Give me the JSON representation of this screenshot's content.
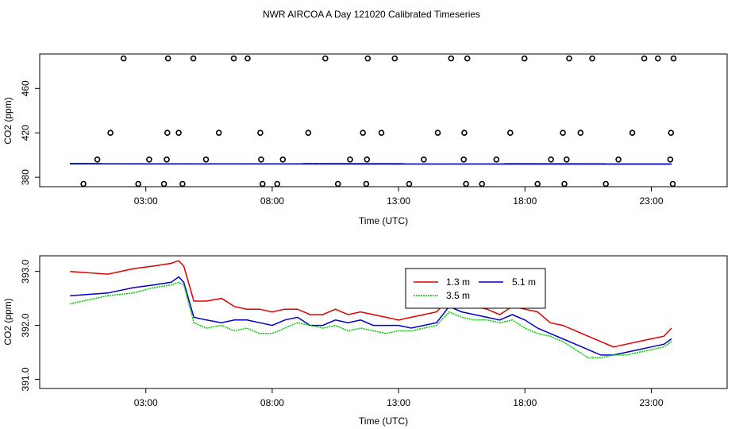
{
  "colors": {
    "red": "#e00000",
    "green": "#00cc00",
    "blue": "#0000cc",
    "axis": "#000000"
  },
  "chart_data": [
    {
      "type": "scatter",
      "title": "NWR AIRCOA A  Day 121020  Calibrated Timeseries",
      "xlabel": "Time (UTC)",
      "ylabel": "CO2 (ppm)",
      "xlim": [
        -1.2,
        26.0
      ],
      "ylim": [
        371.5,
        491.0
      ],
      "xticks": [
        3,
        8,
        13,
        18,
        23
      ],
      "xtick_labels": [
        "03:00",
        "08:00",
        "13:00",
        "18:00",
        "23:00"
      ],
      "yticks": [
        380,
        420,
        460
      ],
      "ytick_labels": [
        "380",
        "420",
        "460"
      ],
      "points": {
        "x": [
          0.53,
          1.08,
          1.6,
          2.12,
          2.7,
          3.13,
          3.72,
          3.83,
          3.85,
          3.88,
          4.3,
          4.45,
          4.88,
          5.38,
          5.89,
          6.48,
          7.03,
          7.53,
          7.56,
          7.62,
          8.2,
          8.42,
          9.43,
          10.1,
          10.6,
          11.08,
          11.59,
          11.72,
          11.75,
          11.78,
          12.32,
          12.85,
          13.42,
          14.0,
          14.55,
          15.08,
          15.58,
          15.6,
          15.67,
          15.72,
          16.3,
          16.87,
          17.42,
          17.98,
          18.5,
          19.03,
          19.5,
          19.56,
          19.65,
          19.75,
          20.2,
          20.66,
          21.2,
          21.7,
          22.25,
          22.72,
          23.26,
          23.75,
          23.78,
          23.85,
          23.88
        ],
        "y": [
          374,
          396,
          420,
          487,
          374,
          396,
          374,
          396,
          420,
          487,
          420,
          374,
          487,
          396,
          420,
          487,
          487,
          420,
          396,
          374,
          374,
          396,
          420,
          487,
          374,
          396,
          420,
          374,
          396,
          487,
          420,
          487,
          374,
          396,
          420,
          487,
          396,
          420,
          374,
          487,
          374,
          396,
          420,
          487,
          374,
          396,
          420,
          374,
          396,
          487,
          420,
          487,
          374,
          396,
          420,
          487,
          487,
          396,
          420,
          374,
          487
        ]
      },
      "series": [
        {
          "name": "1.3 m",
          "color": "#e00000",
          "x": [
            0,
            23.8
          ],
          "values": [
            392.4,
            392.2
          ]
        },
        {
          "name": "3.5 m",
          "color": "#00cc00",
          "x": [
            0,
            23.8
          ],
          "values": [
            392.0,
            391.7
          ]
        },
        {
          "name": "5.1 m",
          "color": "#0000cc",
          "x": [
            0,
            23.8
          ],
          "values": [
            392.2,
            391.9
          ]
        }
      ]
    },
    {
      "type": "line",
      "xlabel": "Time (UTC)",
      "ylabel": "CO2 (ppm)",
      "xlim": [
        -1.2,
        26.0
      ],
      "ylim": [
        390.83,
        393.29
      ],
      "xticks": [
        3,
        8,
        13,
        18,
        23
      ],
      "xtick_labels": [
        "03:00",
        "08:00",
        "13:00",
        "18:00",
        "23:00"
      ],
      "yticks": [
        391.0,
        392.0,
        393.0
      ],
      "ytick_labels": [
        "391.0",
        "392.0",
        "393.0"
      ],
      "legend": {
        "position": "top-center",
        "entries": [
          "1.3 m",
          "5.1 m",
          "3.5 m"
        ]
      },
      "series": [
        {
          "name": "1.3 m",
          "color": "#e00000",
          "x": [
            0,
            1.5,
            2.5,
            3.3,
            4.0,
            4.3,
            4.5,
            4.9,
            5.4,
            6.0,
            6.5,
            7.0,
            7.5,
            8.0,
            8.5,
            9.0,
            9.5,
            10.0,
            10.5,
            11.0,
            11.5,
            12.0,
            12.5,
            13.0,
            13.5,
            14.0,
            14.5,
            15.0,
            15.5,
            16.0,
            16.5,
            17.0,
            17.5,
            18.0,
            18.5,
            19.0,
            19.5,
            20.0,
            20.5,
            21.0,
            21.5,
            22.0,
            22.5,
            23.0,
            23.5,
            23.8
          ],
          "values": [
            393.0,
            392.95,
            393.05,
            393.1,
            393.15,
            393.2,
            393.1,
            392.45,
            392.45,
            392.5,
            392.35,
            392.3,
            392.3,
            392.25,
            392.3,
            392.3,
            392.2,
            392.2,
            392.3,
            392.2,
            392.25,
            392.2,
            392.15,
            392.1,
            392.15,
            392.2,
            392.25,
            392.5,
            392.4,
            392.35,
            392.3,
            392.2,
            392.35,
            392.3,
            392.25,
            392.05,
            392.0,
            391.9,
            391.8,
            391.7,
            391.6,
            391.65,
            391.7,
            391.75,
            391.8,
            391.95
          ]
        },
        {
          "name": "5.1 m",
          "color": "#0000cc",
          "x": [
            0,
            1.5,
            2.5,
            3.3,
            4.0,
            4.3,
            4.5,
            4.9,
            5.4,
            6.0,
            6.5,
            7.0,
            7.5,
            8.0,
            8.5,
            9.0,
            9.5,
            10.0,
            10.5,
            11.0,
            11.5,
            12.0,
            12.5,
            13.0,
            13.5,
            14.0,
            14.5,
            15.0,
            15.5,
            16.0,
            16.5,
            17.0,
            17.5,
            18.0,
            18.5,
            19.0,
            19.5,
            20.0,
            20.5,
            21.0,
            21.5,
            22.0,
            22.5,
            23.0,
            23.5,
            23.8
          ],
          "values": [
            392.55,
            392.6,
            392.7,
            392.75,
            392.8,
            392.9,
            392.8,
            392.15,
            392.1,
            392.05,
            392.1,
            392.1,
            392.05,
            392.0,
            392.1,
            392.15,
            392.0,
            392.0,
            392.1,
            392.05,
            392.1,
            392.0,
            392.0,
            392.0,
            391.95,
            392.0,
            392.05,
            392.35,
            392.25,
            392.2,
            392.15,
            392.1,
            392.2,
            392.1,
            391.95,
            391.85,
            391.75,
            391.65,
            391.55,
            391.45,
            391.45,
            391.5,
            391.55,
            391.6,
            391.65,
            391.75
          ]
        },
        {
          "name": "3.5 m",
          "color": "#00cc00",
          "x": [
            0,
            1.5,
            2.5,
            3.3,
            4.0,
            4.3,
            4.5,
            4.9,
            5.4,
            6.0,
            6.5,
            7.0,
            7.5,
            8.0,
            8.5,
            9.0,
            9.5,
            10.0,
            10.5,
            11.0,
            11.5,
            12.0,
            12.5,
            13.0,
            13.5,
            14.0,
            14.5,
            15.0,
            15.5,
            16.0,
            16.5,
            17.0,
            17.5,
            18.0,
            18.5,
            19.0,
            19.5,
            20.0,
            20.5,
            21.0,
            21.5,
            22.0,
            22.5,
            23.0,
            23.5,
            23.8
          ],
          "values": [
            392.4,
            392.55,
            392.6,
            392.7,
            392.75,
            392.8,
            392.75,
            392.05,
            391.95,
            392.0,
            391.9,
            391.95,
            391.85,
            391.85,
            391.95,
            392.05,
            392.0,
            391.95,
            392.0,
            391.9,
            391.95,
            391.9,
            391.85,
            391.9,
            391.9,
            391.95,
            392.0,
            392.25,
            392.15,
            392.1,
            392.1,
            392.05,
            392.1,
            391.95,
            391.85,
            391.8,
            391.7,
            391.55,
            391.4,
            391.4,
            391.45,
            391.45,
            391.5,
            391.55,
            391.6,
            391.7
          ]
        }
      ]
    }
  ]
}
